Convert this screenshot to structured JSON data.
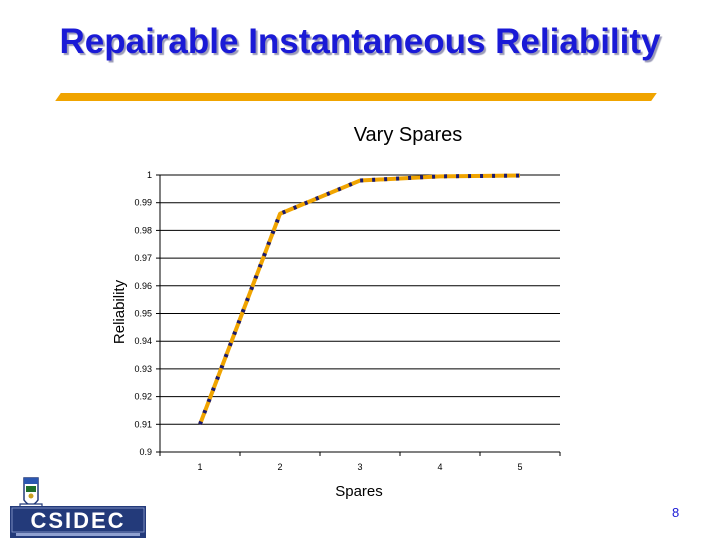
{
  "slide": {
    "title": "Repairable Instantaneous Reliability",
    "page_number": "8",
    "logo_text": "CSIDEC"
  },
  "colors": {
    "title": "#1a1ad6",
    "rule": "#f0a400",
    "line_dash_a": "#f0a400",
    "line_dash_b": "#1a1a6e"
  },
  "chart_data": {
    "type": "line",
    "title": "Vary Spares",
    "xlabel": "Spares",
    "ylabel": "Reliability",
    "categories": [
      "1",
      "2",
      "3",
      "4",
      "5"
    ],
    "series": [
      {
        "values": [
          0.91,
          0.986,
          0.998,
          0.9995,
          0.9998
        ]
      }
    ],
    "ylim": [
      0.9,
      1
    ],
    "yticks": [
      "0.9",
      "0.91",
      "0.92",
      "0.93",
      "0.94",
      "0.95",
      "0.96",
      "0.97",
      "0.98",
      "0.99",
      "1"
    ],
    "grid": true,
    "legend": "none"
  }
}
